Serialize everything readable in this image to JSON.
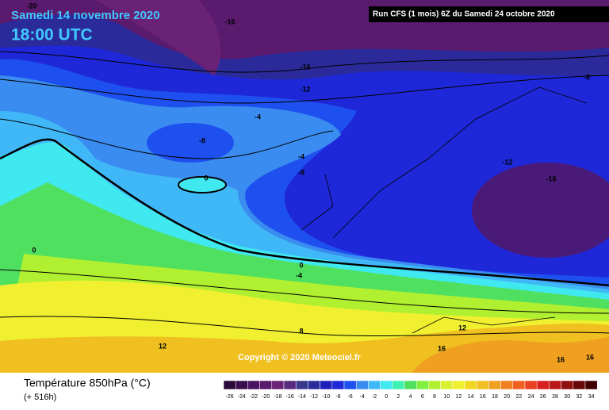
{
  "header": {
    "date": "Samedi 14 novembre 2020",
    "time": "18:00 UTC",
    "run": "Run CFS (1 mois) 6Z du Samedi 24 octobre 2020"
  },
  "copyright": "Copyright © 2020 Meteociel.fr",
  "footer": {
    "title": "Température 850hPa (°C)",
    "lead": "(+ 516h)"
  },
  "map": {
    "contour_labels": [
      "-20",
      "-16",
      "-16",
      "-12",
      "-8",
      "-4",
      "-8",
      "-4",
      "-8",
      "0",
      "-12",
      "-16",
      "0",
      "-4",
      "8",
      "12",
      "12",
      "16",
      "16",
      "16",
      "0"
    ]
  },
  "legend": {
    "ticks": [
      -26,
      -24,
      -22,
      -20,
      -18,
      -16,
      -14,
      -12,
      -10,
      -8,
      -6,
      -4,
      -2,
      0,
      2,
      4,
      6,
      8,
      10,
      12,
      14,
      16,
      18,
      20,
      22,
      24,
      26,
      28,
      30,
      32,
      34
    ],
    "colors": [
      "#2a0a3a",
      "#3a0e4e",
      "#4a1262",
      "#5a1a6e",
      "#6a2276",
      "#5a2a80",
      "#3a3a8c",
      "#2a2a9a",
      "#1e1eb8",
      "#1e28d8",
      "#1e50f0",
      "#3a8cf0",
      "#40b8f8",
      "#40e8f0",
      "#40f0b0",
      "#50e060",
      "#80f040",
      "#b0f030",
      "#d8f030",
      "#f0f030",
      "#f0d820",
      "#f0c020",
      "#f0a020",
      "#f08020",
      "#f06020",
      "#e84020",
      "#d82020",
      "#b81818",
      "#901010",
      "#680808",
      "#400000"
    ]
  }
}
